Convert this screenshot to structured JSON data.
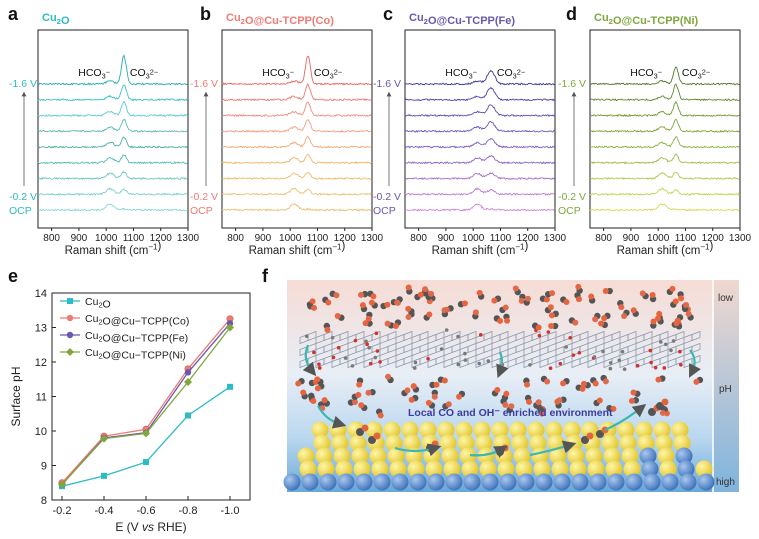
{
  "panel_letters": {
    "a": "a",
    "b": "b",
    "c": "c",
    "d": "d",
    "e": "e",
    "f": "f"
  },
  "colors": {
    "cu2o": "#2bbcc4",
    "co": "#ef7b73",
    "fe": "#6a58b0",
    "ni": "#7ea83c",
    "envtext": "#3b3ba0",
    "arrow": "#3ab7b0"
  },
  "raman_common": {
    "x_axis_label": "Raman shift (cm⁻¹)",
    "x_ticks": [
      "800",
      "900",
      "1000",
      "1100",
      "1200",
      "1300"
    ],
    "potential_top": "-1.6 V",
    "potential_bottom": "-0.2 V",
    "ocp": "OCP",
    "peak_hco3": "HCO₃⁻",
    "peak_co3": "CO₃²⁻"
  },
  "legend": [
    "Cu₂O",
    "Cu₂O@Cu−TCPP(Co)",
    "Cu₂O@Cu−TCPP(Fe)",
    "Cu₂O@Cu−TCPP(Ni)"
  ],
  "schematic": {
    "label_low": "low",
    "label_ph": "pH",
    "label_high": "high",
    "env_text": "Local CO and OH⁻ enriched environment"
  },
  "chart_data": [
    {
      "type": "line",
      "title": "Cu₂O",
      "xlabel": "Raman shift (cm⁻¹)",
      "xlim": [
        750,
        1300
      ],
      "series_labels_top_to_bottom": [
        "-1.6 V",
        "",
        "",
        "",
        "",
        "",
        "",
        "-0.2 V",
        "OCP"
      ],
      "peaks": {
        "HCO3-": 1015,
        "CO3 2-": 1065
      },
      "trace_count": 9
    },
    {
      "type": "line",
      "title": "Cu₂O@Cu-TCPP(Co)",
      "xlabel": "Raman shift (cm⁻¹)",
      "xlim": [
        750,
        1300
      ],
      "peaks": {
        "HCO3-": 1015,
        "CO3 2-": 1065
      },
      "trace_count": 9
    },
    {
      "type": "line",
      "title": "Cu₂O@Cu-TCPP(Fe)",
      "xlabel": "Raman shift (cm⁻¹)",
      "xlim": [
        750,
        1300
      ],
      "peaks": {
        "HCO3-": 1015,
        "CO3 2-": 1065
      },
      "trace_count": 9
    },
    {
      "type": "line",
      "title": "Cu₂O@Cu-TCPP(Ni)",
      "xlabel": "Raman shift (cm⁻¹)",
      "xlim": [
        750,
        1300
      ],
      "peaks": {
        "HCO3-": 1015,
        "CO3 2-": 1065
      },
      "trace_count": 9
    },
    {
      "type": "line",
      "xlabel": "E (V vs RHE)",
      "ylabel": "Surface pH",
      "categories": [
        "-0.2",
        "-0.4",
        "-0.6",
        "-0.8",
        "-1.0"
      ],
      "x": [
        -0.2,
        -0.4,
        -0.6,
        -0.8,
        -1.0
      ],
      "ylim": [
        8,
        14
      ],
      "y_ticks": [
        "8",
        "9",
        "10",
        "11",
        "12",
        "13",
        "14"
      ],
      "legend_position": "top-left",
      "series": [
        {
          "name": "Cu₂O",
          "marker": "square",
          "values": [
            8.4,
            8.7,
            9.1,
            10.45,
            11.28
          ]
        },
        {
          "name": "Cu₂O@Cu−TCPP(Co)",
          "marker": "circle",
          "values": [
            8.5,
            9.85,
            10.05,
            11.8,
            13.25
          ]
        },
        {
          "name": "Cu₂O@Cu−TCPP(Fe)",
          "marker": "circle",
          "values": [
            8.45,
            9.8,
            9.95,
            11.7,
            13.12
          ]
        },
        {
          "name": "Cu₂O@Cu−TCPP(Ni)",
          "marker": "diamond",
          "values": [
            8.45,
            9.78,
            9.93,
            11.42,
            13.0
          ]
        }
      ]
    }
  ]
}
